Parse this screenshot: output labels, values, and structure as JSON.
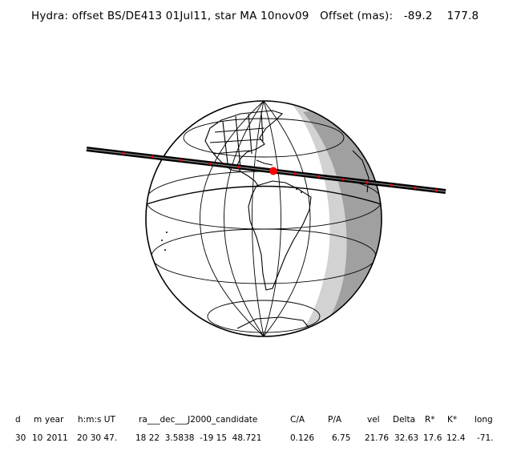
{
  "title": "Hydra: offset BS/DE413 01Jul11, star MA 10nov09   Offset (mas):   -89.2    177.8",
  "columns": [
    {
      "header": "d",
      "value": "30"
    },
    {
      "header": "m",
      "value": "10"
    },
    {
      "header": "year",
      "value": "2011"
    },
    {
      "header": "h:m:s UT",
      "value": "20 30 47."
    },
    {
      "header": "ra___dec___J2000_candidate",
      "value": "18 22  3.5838  -19 15  48.721"
    },
    {
      "header": "C/A",
      "value": "0.126"
    },
    {
      "header": "P/A",
      "value": "6.75"
    },
    {
      "header": "vel",
      "value": "21.76"
    },
    {
      "header": "Delta",
      "value": "32.63"
    },
    {
      "header": "R*",
      "value": "17.6"
    },
    {
      "header": "K*",
      "value": "12.4"
    },
    {
      "header": "long",
      "value": "-71."
    }
  ],
  "colors": {
    "track": "#000000",
    "track_marks": "#ff0000",
    "night": "#a0a0a0",
    "twilight": "#d2d2d2",
    "land": "#000000"
  }
}
